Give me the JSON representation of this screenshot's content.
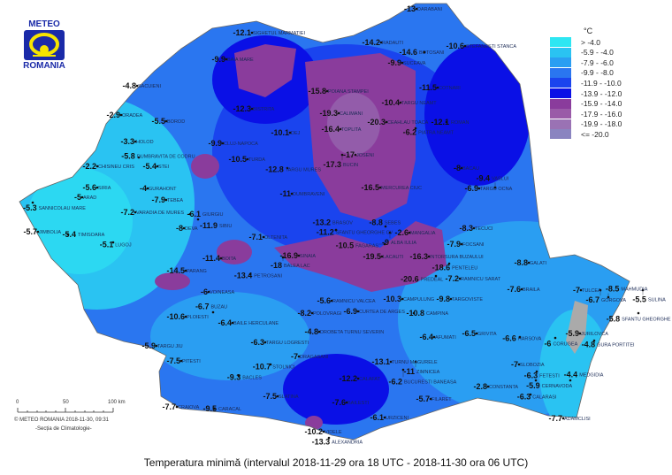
{
  "logo": {
    "top": "METEO",
    "bottom": "ROMANIA"
  },
  "legend": {
    "unit": "°C",
    "classes": [
      {
        "label": "> -4.0",
        "color": "#2ee6f2"
      },
      {
        "label": "-5.9 - -4.0",
        "color": "#2ac3f2"
      },
      {
        "label": "-7.9 - -6.0",
        "color": "#2a9ef2"
      },
      {
        "label": "-9.9 - -8.0",
        "color": "#2a76f0"
      },
      {
        "label": "-11.9 - -10.0",
        "color": "#1a44ee"
      },
      {
        "label": "-13.9 - -12.0",
        "color": "#0a10e6"
      },
      {
        "label": "-15.9 - -14.0",
        "color": "#8a3c9c"
      },
      {
        "label": "-17.9 - -16.0",
        "color": "#9a5aa8"
      },
      {
        "label": "-19.9 - -18.0",
        "color": "#9a72b4"
      },
      {
        "label": "<= -20.0",
        "color": "#8a84c0"
      }
    ]
  },
  "scale": {
    "t0": "0",
    "t50": "50",
    "t100": "100 km"
  },
  "credit": "© METEO ROMANIA 2018-11-30, 09:31",
  "credit2": "-Secția de Climatologie-",
  "title": "Temperatura minimă (intervalul 2018-11-29 ora 18 UTC - 2018-11-30 ora 06 UTC)",
  "stations": [
    {
      "name": "SACUIENI",
      "value": "-4.8"
    },
    {
      "name": "ORADEA",
      "value": "-2.9"
    },
    {
      "name": "HOLOD",
      "value": "-3.3"
    },
    {
      "name": "BOROD",
      "value": "-5.5"
    },
    {
      "name": "CHISINEU CRIS",
      "value": "-2.2"
    },
    {
      "name": "DUMBRAVITA DE CODRU",
      "value": "-5.8"
    },
    {
      "name": "STEI",
      "value": "-5.4"
    },
    {
      "name": "SIRIA",
      "value": "-5.6"
    },
    {
      "name": "ARAD",
      "value": "-5"
    },
    {
      "name": "SANNICOLAU MARE",
      "value": "-5.3"
    },
    {
      "name": "GURAHONT",
      "value": "-4"
    },
    {
      "name": "VARADIA DE MURES",
      "value": "-7.2"
    },
    {
      "name": "TEBEA",
      "value": "-7.9"
    },
    {
      "name": "JIMBOLIA",
      "value": "-5.7"
    },
    {
      "name": "TIMISOARA",
      "value": "-5.4"
    },
    {
      "name": "LUGOJ",
      "value": "-5.1"
    },
    {
      "name": "DEVA",
      "value": "-8"
    },
    {
      "name": "BAIA MARE",
      "value": "-9.9"
    },
    {
      "name": "SIGHETUL MARMATIEI",
      "value": "-12.1"
    },
    {
      "name": "POIANA STAMPEI",
      "value": "-15.8"
    },
    {
      "name": "CALIMANI",
      "value": "-19.3"
    },
    {
      "name": "CEAHLAU TOACA",
      "value": "-20.3"
    },
    {
      "name": "TOPLITA",
      "value": "-16.4"
    },
    {
      "name": "JOSENI",
      "value": "-17"
    },
    {
      "name": "BUCIN",
      "value": "-17.3"
    },
    {
      "name": "MERCUREA CIUC",
      "value": "-16.5"
    },
    {
      "name": "SUCEAVA",
      "value": "-9.9"
    },
    {
      "name": "RADAUTI",
      "value": "-14.2"
    },
    {
      "name": "DARABANI",
      "value": "-13"
    },
    {
      "name": "STEFANESTI STANCA",
      "value": "-10.6"
    },
    {
      "name": "BOTOSANI",
      "value": "-14.6"
    },
    {
      "name": "COTNARI",
      "value": "-11.5"
    },
    {
      "name": "TARGU NEAMT",
      "value": "-10.4"
    },
    {
      "name": "PIATRA NEAMT",
      "value": "-6.2"
    },
    {
      "name": "ROMAN",
      "value": "-12.1"
    },
    {
      "name": "CLUJ-NAPOCA",
      "value": "-9.9"
    },
    {
      "name": "DEJ",
      "value": "-10.1"
    },
    {
      "name": "BISTRITA",
      "value": "-12.3"
    },
    {
      "name": "DUMBRAVENI",
      "value": "-11"
    },
    {
      "name": "TARGU MURES",
      "value": "-12.8"
    },
    {
      "name": "TURDA",
      "value": "-10.5"
    },
    {
      "name": "BACAU",
      "value": "-8"
    },
    {
      "name": "TARGU OCNA",
      "value": "-6.9"
    },
    {
      "name": "VASLUI",
      "value": "-9.4"
    },
    {
      "name": "TECUCI",
      "value": "-8.3"
    },
    {
      "name": "FOCSANI",
      "value": "-7.9"
    },
    {
      "name": "GALATI",
      "value": "-8.8"
    },
    {
      "name": "RAMNICU SARAT",
      "value": "-7.2"
    },
    {
      "name": "BRAILA",
      "value": "-7.6"
    },
    {
      "name": "TULCEA",
      "value": "-7"
    },
    {
      "name": "GORGOVA",
      "value": "-6.7"
    },
    {
      "name": "MAHMUDIA",
      "value": "-8.5"
    },
    {
      "name": "SULINA",
      "value": "-5.5"
    },
    {
      "name": "SFANTU GHEORGHE",
      "value": "-5.8"
    },
    {
      "name": "JURILOVCA",
      "value": "-5.9"
    },
    {
      "name": "GURA PORTITEI",
      "value": "-4.8"
    },
    {
      "name": "CORUGEA",
      "value": "-6"
    },
    {
      "name": "HARSOVA",
      "value": "-6.6"
    },
    {
      "name": "GRIVITA",
      "value": "-6.5"
    },
    {
      "name": "SLOBOZIA",
      "value": "-7"
    },
    {
      "name": "FETESTI",
      "value": "-6.3"
    },
    {
      "name": "CERNAVODA",
      "value": "-5.9"
    },
    {
      "name": "MEDGIDIA",
      "value": "-4.4"
    },
    {
      "name": "CONSTANTA",
      "value": "-2.8"
    },
    {
      "name": "CALARASI",
      "value": "-6.3"
    },
    {
      "name": "ADAMCLISI",
      "value": "-7.7"
    },
    {
      "name": "MANGALIA",
      "value": "-2.6"
    },
    {
      "name": "LACAUTI",
      "value": "-19.5"
    },
    {
      "name": "INTORSURA BUZAULUI",
      "value": "-16.3"
    },
    {
      "name": "PENTELEU",
      "value": "-18.6"
    },
    {
      "name": "PREDEAL",
      "value": "-20.6"
    },
    {
      "name": "SINAIA",
      "value": "-16.9"
    },
    {
      "name": "BALEA LAC",
      "value": "-18"
    },
    {
      "name": "BOITA",
      "value": "-11.4"
    },
    {
      "name": "PARANG",
      "value": "-14.5"
    },
    {
      "name": "PETROSANI",
      "value": "-13.4"
    },
    {
      "name": "VOINEASA",
      "value": "-6"
    },
    {
      "name": "POLOVRAGI",
      "value": "-8.2"
    },
    {
      "name": "RAMNICU VALCEA",
      "value": "-5.6"
    },
    {
      "name": "CURTEA DE ARGES",
      "value": "-6.9"
    },
    {
      "name": "CAMPULUNG",
      "value": "-10.3"
    },
    {
      "name": "CAMPINA",
      "value": "-10.8"
    },
    {
      "name": "TARGOVISTE",
      "value": "-9.8"
    },
    {
      "name": "PLOIESTI",
      "value": "-10.6"
    },
    {
      "name": "BUZAU",
      "value": "-6.7"
    },
    {
      "name": "BAILE HERCULANE",
      "value": "-6.4"
    },
    {
      "name": "TARGU JIU",
      "value": "-5.9"
    },
    {
      "name": "TARGU LOGRESTI",
      "value": "-6.3"
    },
    {
      "name": "DROBETA TURNU SEVERIN",
      "value": "-4.8"
    },
    {
      "name": "DRAGASANI",
      "value": "-7"
    },
    {
      "name": "PITESTI",
      "value": "-7.5"
    },
    {
      "name": "STOLNICI",
      "value": "-10.7"
    },
    {
      "name": "BACLES",
      "value": "-9.3"
    },
    {
      "name": "SLATINA",
      "value": "-7.5"
    },
    {
      "name": "CRAIOVA",
      "value": "-7.7"
    },
    {
      "name": "CARACAL",
      "value": "-9.5"
    },
    {
      "name": "CALAFAT",
      "value": "-12.2"
    },
    {
      "name": "BAILESTI",
      "value": "-7.6"
    },
    {
      "name": "VIDELE",
      "value": "-10.2"
    },
    {
      "name": "ALEXANDRIA",
      "value": "-13.3"
    },
    {
      "name": "TURNU MAGURELE",
      "value": "-13.1"
    },
    {
      "name": "ZIMNICEA",
      "value": "-11"
    },
    {
      "name": "BUCURESTI BANEASA",
      "value": "-6.2"
    },
    {
      "name": "AFUMATI",
      "value": "-6.4"
    },
    {
      "name": "FILARET",
      "value": "-5.7"
    },
    {
      "name": "URZICENI",
      "value": "-6.1"
    },
    {
      "name": "OLTENITA",
      "value": "-7.1"
    },
    {
      "name": "GIURGIU",
      "value": "-6.1"
    },
    {
      "name": "SIBIU",
      "value": "-11.9"
    },
    {
      "name": "ALBA IULIA",
      "value": "-9"
    },
    {
      "name": "SEBES",
      "value": "-8.8"
    },
    {
      "name": "FAGARAS",
      "value": "-10.5"
    },
    {
      "name": "SFANTU GHEORGHE CV",
      "value": "-11.2"
    },
    {
      "name": "BRASOV",
      "value": "-13.2"
    }
  ]
}
